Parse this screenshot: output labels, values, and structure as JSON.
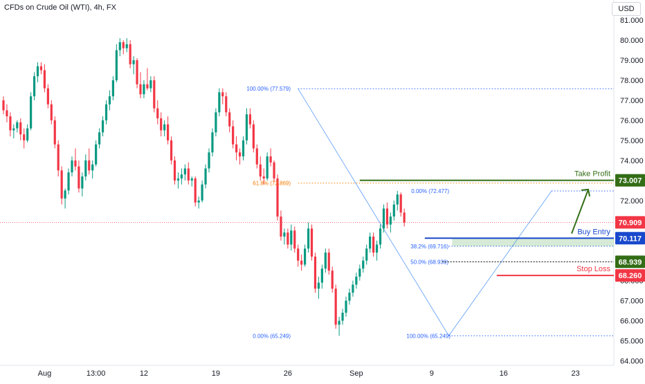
{
  "chart_data": {
    "type": "candlestick",
    "title": "CFDs on Crude Oil (WTI), 4h, FX",
    "currency": "USD",
    "ylim": [
      63.6,
      81.2
    ],
    "y_ticks": [
      "81.000",
      "80.000",
      "79.000",
      "78.000",
      "77.000",
      "76.000",
      "75.000",
      "74.000",
      "73.000",
      "72.000",
      "71.000",
      "70.000",
      "69.000",
      "68.000",
      "67.000",
      "66.000",
      "65.000",
      "64.000"
    ],
    "x_ticks": [
      {
        "label": "Aug",
        "bar": 12
      },
      {
        "label": "13:00",
        "bar": 27
      },
      {
        "label": "12",
        "bar": 41
      },
      {
        "label": "19",
        "bar": 62
      },
      {
        "label": "26",
        "bar": 83
      },
      {
        "label": "Sep",
        "bar": 103
      },
      {
        "label": "9",
        "bar": 125
      },
      {
        "label": "16",
        "bar": 146
      },
      {
        "label": "23",
        "bar": 167
      }
    ],
    "last_price": {
      "label": "70.909",
      "value": 70.909,
      "color": "#f23645"
    },
    "levels": [
      {
        "name": "Take Profit",
        "label": "Take Profit",
        "price_label": "73.007",
        "value": 73.007,
        "color": "#336d16",
        "start_bar": 104
      },
      {
        "name": "Buy Entry",
        "label": "Buy Entry",
        "price_label": "70.117",
        "value": 70.117,
        "color": "#1848cc",
        "start_bar": 123
      },
      {
        "name": "Stop Loss",
        "label": "Stop Loss",
        "price_label": "68.260",
        "value": 68.26,
        "color": "#f23645",
        "start_bar": 144
      },
      {
        "name": "Fib 50%",
        "label": "",
        "price_label": "68.939",
        "value": 68.939,
        "color": "#131722",
        "start_bar": 128
      }
    ],
    "fib_labels": [
      {
        "text": "100.00% (77.579)",
        "value": 77.579,
        "bar": 72,
        "color": "#2962ff"
      },
      {
        "text": "61.8% (72.869)",
        "value": 72.869,
        "bar": 73,
        "color": "#f57c00"
      },
      {
        "text": "0.00% (72.477)",
        "value": 72.477,
        "bar": 120,
        "color": "#2962ff"
      },
      {
        "text": "38.2% (69.716)",
        "value": 69.716,
        "bar": 119,
        "color": "#2962ff"
      },
      {
        "text": "50.0% (68.939)",
        "value": 68.939,
        "bar": 119,
        "color": "#2962ff"
      },
      {
        "text": "0.00% (65.249)",
        "value": 65.249,
        "bar": 74,
        "color": "#2962ff"
      },
      {
        "text": "100.00% (65.249)",
        "value": 65.249,
        "bar": 118,
        "color": "#2962ff"
      }
    ],
    "series": [
      {
        "name": "WTI",
        "ohlc": [
          [
            77.0,
            77.2,
            76.3,
            76.5
          ],
          [
            76.5,
            76.8,
            75.9,
            76.2
          ],
          [
            76.2,
            76.4,
            75.2,
            75.5
          ],
          [
            75.5,
            75.8,
            75.1,
            75.6
          ],
          [
            75.6,
            76.0,
            75.4,
            75.9
          ],
          [
            75.9,
            76.1,
            75.0,
            75.3
          ],
          [
            75.3,
            75.6,
            74.6,
            75.0
          ],
          [
            75.0,
            75.8,
            74.9,
            75.6
          ],
          [
            75.6,
            77.4,
            75.5,
            77.2
          ],
          [
            77.2,
            78.4,
            77.0,
            78.2
          ],
          [
            78.2,
            78.9,
            77.9,
            78.7
          ],
          [
            78.7,
            78.9,
            78.3,
            78.5
          ],
          [
            78.5,
            78.8,
            77.4,
            77.6
          ],
          [
            77.6,
            77.8,
            76.6,
            76.8
          ],
          [
            76.8,
            77.0,
            75.8,
            76.0
          ],
          [
            76.0,
            76.2,
            74.6,
            74.8
          ],
          [
            74.8,
            75.0,
            73.2,
            73.5
          ],
          [
            73.5,
            73.7,
            71.8,
            72.1
          ],
          [
            72.1,
            72.6,
            71.6,
            72.5
          ],
          [
            72.5,
            73.6,
            72.3,
            73.4
          ],
          [
            73.4,
            74.2,
            73.2,
            74.0
          ],
          [
            74.0,
            74.6,
            73.5,
            73.7
          ],
          [
            73.7,
            74.0,
            72.4,
            72.6
          ],
          [
            72.6,
            73.4,
            72.2,
            73.2
          ],
          [
            73.2,
            74.3,
            73.0,
            74.0
          ],
          [
            74.0,
            74.6,
            73.3,
            73.5
          ],
          [
            73.5,
            74.0,
            73.1,
            73.8
          ],
          [
            73.8,
            75.0,
            73.7,
            74.8
          ],
          [
            74.8,
            75.6,
            74.6,
            75.4
          ],
          [
            75.4,
            76.2,
            75.2,
            76.0
          ],
          [
            76.0,
            77.0,
            75.8,
            76.8
          ],
          [
            76.8,
            77.5,
            76.5,
            77.2
          ],
          [
            77.2,
            78.2,
            77.0,
            78.0
          ],
          [
            78.0,
            79.8,
            77.9,
            79.5
          ],
          [
            79.5,
            80.1,
            79.2,
            79.9
          ],
          [
            79.9,
            80.0,
            79.3,
            79.6
          ],
          [
            79.6,
            80.1,
            79.4,
            79.8
          ],
          [
            79.8,
            80.0,
            78.6,
            78.8
          ],
          [
            78.8,
            79.2,
            78.3,
            79.0
          ],
          [
            79.0,
            79.1,
            77.6,
            77.8
          ],
          [
            77.8,
            78.4,
            77.1,
            77.3
          ],
          [
            77.3,
            78.0,
            77.1,
            77.8
          ],
          [
            77.8,
            78.6,
            77.5,
            77.6
          ],
          [
            77.6,
            78.2,
            77.4,
            78.0
          ],
          [
            78.0,
            78.2,
            76.4,
            76.6
          ],
          [
            76.6,
            77.0,
            75.8,
            76.1
          ],
          [
            76.1,
            76.4,
            75.2,
            75.5
          ],
          [
            75.5,
            76.0,
            75.2,
            75.8
          ],
          [
            75.8,
            76.2,
            74.8,
            75.0
          ],
          [
            75.0,
            75.2,
            73.8,
            74.0
          ],
          [
            74.0,
            74.2,
            72.8,
            73.0
          ],
          [
            73.0,
            73.4,
            72.6,
            73.1
          ],
          [
            73.1,
            73.6,
            72.8,
            73.3
          ],
          [
            73.3,
            73.8,
            73.0,
            73.6
          ],
          [
            73.6,
            73.9,
            72.8,
            73.0
          ],
          [
            73.0,
            73.2,
            72.7,
            73.1
          ],
          [
            73.1,
            73.2,
            71.7,
            71.9
          ],
          [
            71.9,
            72.2,
            71.6,
            72.0
          ],
          [
            72.0,
            73.0,
            71.9,
            72.8
          ],
          [
            72.8,
            73.8,
            72.6,
            73.6
          ],
          [
            73.6,
            74.6,
            73.4,
            74.4
          ],
          [
            74.4,
            75.6,
            74.2,
            75.4
          ],
          [
            75.4,
            76.6,
            75.2,
            76.4
          ],
          [
            76.4,
            77.6,
            76.2,
            77.4
          ],
          [
            77.4,
            77.6,
            76.8,
            77.2
          ],
          [
            77.2,
            77.4,
            76.2,
            76.4
          ],
          [
            76.4,
            76.6,
            75.4,
            75.7
          ],
          [
            75.7,
            76.0,
            74.6,
            74.8
          ],
          [
            74.8,
            75.2,
            74.0,
            74.4
          ],
          [
            74.4,
            74.6,
            73.8,
            74.2
          ],
          [
            74.2,
            75.2,
            74.0,
            75.0
          ],
          [
            75.0,
            76.6,
            74.8,
            76.3
          ],
          [
            76.3,
            76.6,
            75.6,
            75.8
          ],
          [
            75.8,
            76.0,
            74.4,
            74.6
          ],
          [
            74.6,
            74.8,
            73.6,
            73.8
          ],
          [
            73.8,
            74.2,
            73.0,
            73.2
          ],
          [
            73.2,
            73.6,
            72.8,
            73.1
          ],
          [
            73.1,
            74.4,
            73.0,
            74.2
          ],
          [
            74.2,
            74.6,
            73.7,
            73.9
          ],
          [
            73.9,
            74.0,
            72.9,
            73.1
          ],
          [
            73.1,
            73.3,
            71.0,
            71.2
          ],
          [
            71.2,
            71.5,
            70.0,
            70.2
          ],
          [
            70.2,
            70.6,
            69.8,
            70.4
          ],
          [
            70.4,
            70.6,
            69.6,
            69.8
          ],
          [
            69.8,
            70.8,
            69.5,
            70.5
          ],
          [
            70.5,
            70.7,
            69.4,
            69.6
          ],
          [
            69.6,
            69.8,
            68.7,
            69.0
          ],
          [
            69.0,
            69.3,
            68.5,
            68.8
          ],
          [
            68.8,
            69.8,
            68.7,
            69.6
          ],
          [
            69.6,
            70.9,
            69.4,
            70.6
          ],
          [
            70.6,
            70.8,
            69.0,
            69.2
          ],
          [
            69.2,
            69.4,
            67.4,
            67.6
          ],
          [
            67.6,
            68.2,
            67.1,
            67.9
          ],
          [
            67.9,
            68.8,
            67.6,
            68.6
          ],
          [
            68.6,
            69.6,
            68.4,
            69.4
          ],
          [
            69.4,
            69.6,
            68.3,
            68.5
          ],
          [
            68.5,
            68.7,
            67.4,
            67.6
          ],
          [
            67.6,
            67.8,
            65.6,
            65.8
          ],
          [
            65.8,
            66.2,
            65.25,
            66.0
          ],
          [
            66.0,
            66.6,
            65.8,
            66.4
          ],
          [
            66.4,
            67.2,
            66.2,
            67.0
          ],
          [
            67.0,
            67.6,
            66.8,
            67.4
          ],
          [
            67.4,
            68.0,
            67.2,
            67.8
          ],
          [
            67.8,
            68.4,
            67.6,
            68.2
          ],
          [
            68.2,
            68.8,
            68.0,
            68.6
          ],
          [
            68.6,
            69.2,
            68.4,
            69.0
          ],
          [
            69.0,
            69.8,
            68.8,
            69.6
          ],
          [
            69.6,
            70.4,
            69.4,
            70.2
          ],
          [
            70.2,
            70.4,
            69.2,
            69.4
          ],
          [
            69.4,
            70.0,
            69.0,
            69.8
          ],
          [
            69.8,
            70.8,
            69.6,
            70.6
          ],
          [
            70.6,
            71.8,
            70.4,
            71.6
          ],
          [
            71.6,
            71.9,
            70.6,
            70.8
          ],
          [
            70.8,
            71.4,
            70.4,
            71.2
          ],
          [
            71.2,
            72.0,
            71.0,
            71.8
          ],
          [
            71.8,
            72.48,
            71.5,
            72.3
          ],
          [
            72.3,
            72.4,
            71.2,
            71.4
          ],
          [
            71.4,
            71.6,
            70.7,
            70.9
          ]
        ]
      }
    ]
  }
}
